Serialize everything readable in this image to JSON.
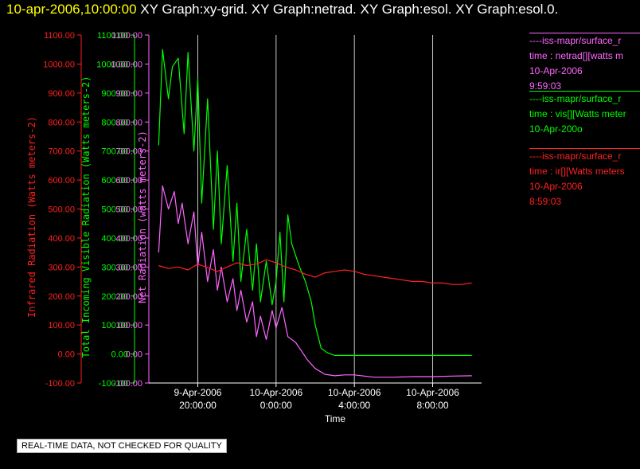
{
  "header": {
    "timestamp": "10-apr-2006,10:00:00",
    "graphs": "XY Graph:xy-grid.  XY Graph:netrad.  XY Graph:esol.  XY Graph:esol.0."
  },
  "legend": [
    {
      "color": "#ff66ff",
      "lines": [
        "----iss-mapr/surface_r",
        "time : netrad[][watts m",
        "10-Apr-2006",
        "9:59:03"
      ]
    },
    {
      "color": "#00ff00",
      "lines": [
        "----iss-mapr/surface_r",
        "time : vis[][Watts meter",
        "10-Apr-200o"
      ]
    },
    {
      "color": "#ff2020",
      "lines": [
        "----iss-mapr/surface_r",
        "time : ir[][Watts meters",
        "10-Apr-2006",
        "8:59:03"
      ]
    }
  ],
  "footer": "REAL-TIME DATA, NOT CHECKED FOR QUALITY",
  "chart_data": {
    "type": "line",
    "xlabel": "Time",
    "x_ticks": [
      {
        "t": -4,
        "line1": "9-Apr-2006",
        "line2": "20:00:00"
      },
      {
        "t": 0,
        "line1": "10-Apr-2006",
        "line2": "0:00:00"
      },
      {
        "t": 4,
        "line1": "10-Apr-2006",
        "line2": "4:00:00"
      },
      {
        "t": 8,
        "line1": "10-Apr-2006",
        "line2": "8:00:00"
      }
    ],
    "xlim": [
      -6.5,
      10.5
    ],
    "ylim": [
      -100,
      1100
    ],
    "y_ticks": [
      "-100.00",
      "0.00",
      "100.00",
      "200.00",
      "300.00",
      "400.00",
      "500.00",
      "600.00",
      "700.00",
      "800.00",
      "900.00",
      "1000.00",
      "1100.00"
    ],
    "y_axes": [
      {
        "label": "Infrared Radiation (Watts meters-2)",
        "color": "#ff2020"
      },
      {
        "label": "Total Incoming Visible Radiation (Watts meters-2)",
        "color": "#00ff00"
      },
      {
        "label": "Net Radiation (watts meters-2)",
        "color": "#ff66ff"
      }
    ],
    "grid": true,
    "series": [
      {
        "color": "#ff2020",
        "x": [
          -6.0,
          -5.5,
          -5.0,
          -4.5,
          -4.0,
          -3.5,
          -3.0,
          -2.5,
          -2.0,
          -1.5,
          -1.0,
          -0.5,
          0.0,
          0.5,
          1.0,
          1.5,
          2.0,
          2.5,
          3.0,
          3.5,
          4.0,
          4.5,
          5.0,
          5.5,
          6.0,
          6.5,
          7.0,
          7.5,
          8.0,
          8.5,
          9.0,
          9.5,
          10.0
        ],
        "y": [
          305,
          295,
          300,
          290,
          310,
          298,
          285,
          300,
          315,
          305,
          310,
          325,
          315,
          300,
          290,
          275,
          265,
          280,
          285,
          290,
          285,
          275,
          270,
          265,
          260,
          255,
          250,
          250,
          245,
          245,
          240,
          240,
          245
        ]
      },
      {
        "color": "#00ff00",
        "x": [
          -6.0,
          -5.8,
          -5.5,
          -5.3,
          -5.0,
          -4.7,
          -4.5,
          -4.2,
          -4.0,
          -3.8,
          -3.5,
          -3.2,
          -3.0,
          -2.8,
          -2.5,
          -2.2,
          -2.0,
          -1.8,
          -1.5,
          -1.2,
          -1.0,
          -0.8,
          -0.5,
          -0.2,
          0.0,
          0.2,
          0.4,
          0.6,
          0.8,
          1.0,
          1.2,
          1.5,
          1.8,
          2.0,
          2.3,
          2.6,
          3.0,
          4.0,
          5.0,
          6.0,
          7.0,
          8.0,
          9.0,
          10.0
        ],
        "y": [
          720,
          1050,
          880,
          990,
          1020,
          760,
          1040,
          700,
          950,
          520,
          880,
          430,
          700,
          380,
          650,
          320,
          520,
          250,
          430,
          220,
          380,
          180,
          320,
          170,
          250,
          420,
          180,
          480,
          380,
          340,
          300,
          250,
          180,
          100,
          20,
          5,
          -5,
          -5,
          -5,
          -5,
          -5,
          -5,
          -5,
          -5
        ]
      },
      {
        "color": "#ff66ff",
        "x": [
          -6.0,
          -5.8,
          -5.5,
          -5.2,
          -5.0,
          -4.8,
          -4.5,
          -4.2,
          -4.0,
          -3.8,
          -3.5,
          -3.2,
          -3.0,
          -2.8,
          -2.5,
          -2.2,
          -2.0,
          -1.8,
          -1.5,
          -1.2,
          -1.0,
          -0.8,
          -0.5,
          -0.2,
          0.0,
          0.3,
          0.6,
          1.0,
          1.3,
          1.6,
          2.0,
          2.5,
          3.0,
          3.5,
          4.0,
          5.0,
          6.0,
          7.0,
          8.0,
          9.0,
          10.0
        ],
        "y": [
          350,
          580,
          500,
          560,
          450,
          520,
          380,
          490,
          300,
          420,
          250,
          360,
          220,
          300,
          180,
          260,
          150,
          220,
          110,
          180,
          60,
          130,
          50,
          150,
          90,
          160,
          60,
          40,
          10,
          -20,
          -50,
          -70,
          -75,
          -72,
          -72,
          -80,
          -80,
          -78,
          -78,
          -76,
          -75
        ]
      }
    ]
  }
}
